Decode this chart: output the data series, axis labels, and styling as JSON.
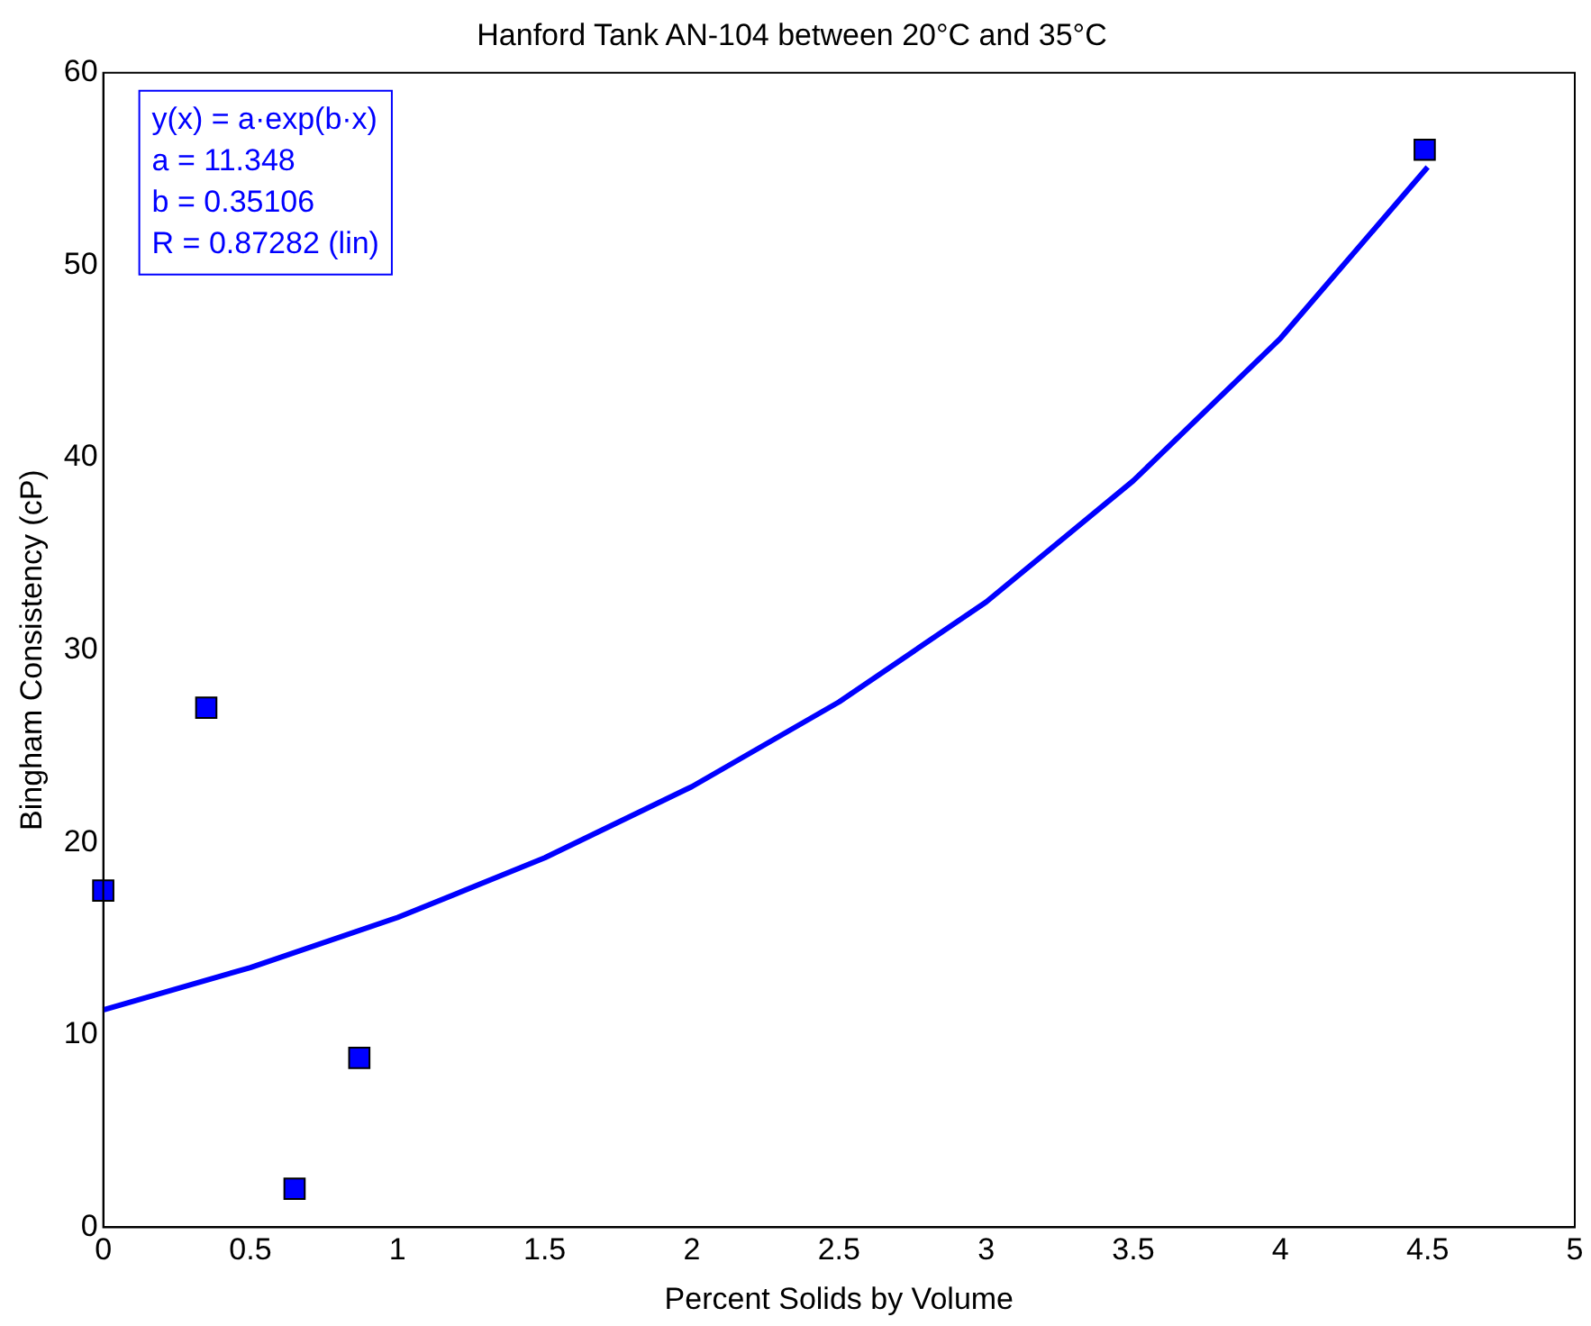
{
  "chart_data": {
    "type": "scatter",
    "title": "Hanford Tank AN-104 between 20°C and 35°C",
    "xlabel": "Percent Solids by Volume",
    "ylabel": "Bingham Consistency (cP)",
    "xlim": [
      0,
      5
    ],
    "xticks": [
      0,
      0.5,
      1,
      1.5,
      2,
      2.5,
      3,
      3.5,
      4,
      4.5,
      5
    ],
    "ylim": [
      0,
      60
    ],
    "yticks": [
      0,
      10,
      20,
      30,
      40,
      50,
      60
    ],
    "grid": false,
    "legend": false,
    "series": [
      {
        "color": "#0000ff",
        "marker": "square",
        "x": [
          0,
          0.35,
          0.65,
          0.87,
          4.49
        ],
        "values": [
          17.5,
          27,
          2,
          8.8,
          56
        ]
      },
      {
        "type": "line",
        "color": "#0000ff",
        "marker": "none",
        "line_style": "solid",
        "x": [
          0,
          0.5,
          1,
          1.5,
          2,
          2.5,
          3,
          3.5,
          4,
          4.5
        ],
        "values": [
          11.3,
          13.5,
          16.1,
          19.2,
          22.9,
          27.3,
          32.5,
          38.8,
          46.2,
          55.1
        ]
      }
    ],
    "annotations": [
      "y(x) = a·exp(b·x)",
      "a = 11.348",
      "b = 0.35106",
      "R = 0.87282 (lin)"
    ]
  }
}
